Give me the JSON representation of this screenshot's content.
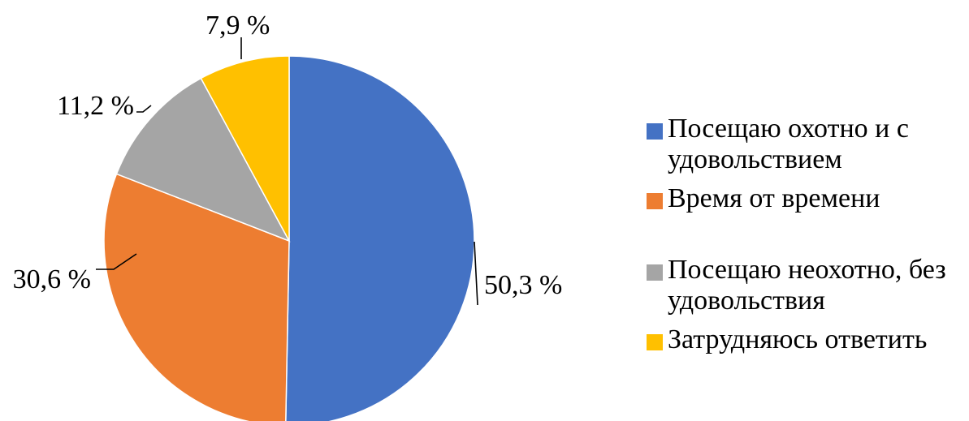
{
  "chart_data": {
    "type": "pie",
    "categories": [
      "Посещаю охотно и с удовольствием",
      "Время от времени",
      "Посещаю неохотно, без удовольствия",
      "Затрудняюсь ответить"
    ],
    "values": [
      50.3,
      30.6,
      11.2,
      7.9
    ],
    "data_labels": [
      "50,3 %",
      "30,6 %",
      "11,2 %",
      "7,9 %"
    ],
    "colors": [
      "#4472C4",
      "#ED7D31",
      "#A5A5A5",
      "#FFC000"
    ],
    "start_angle_deg": 0,
    "direction": "clockwise",
    "legend_position": "right"
  },
  "legend": {
    "items": [
      {
        "label": "Посещаю охотно и с удовольствием",
        "color": "#4472C4"
      },
      {
        "label": "Время от времени",
        "color": "#ED7D31"
      },
      {
        "label": "Посещаю неохотно, без удовольствия",
        "color": "#A5A5A5"
      },
      {
        "label": "Затрудняюсь ответить",
        "color": "#FFC000"
      }
    ]
  }
}
